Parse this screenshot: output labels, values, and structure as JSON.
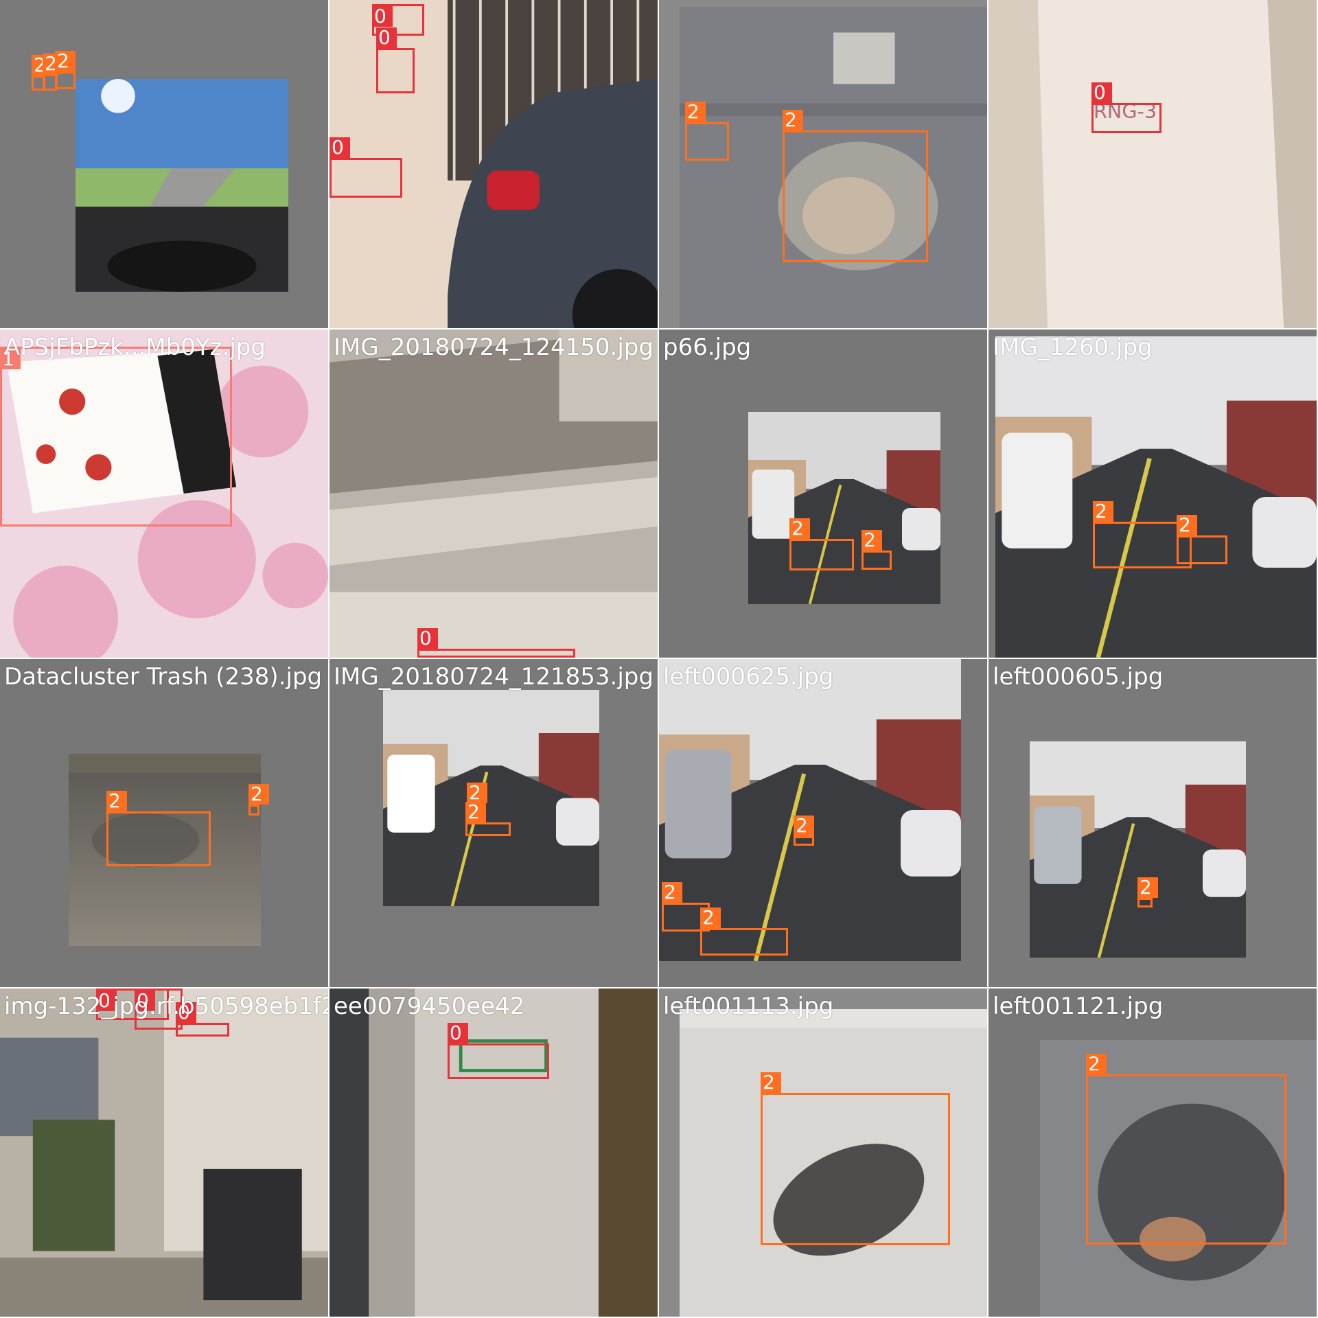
{
  "mosaic": {
    "label_colors": {
      "0": "#e8323a",
      "1": "#f77b6e",
      "2": "#ff6f1f"
    },
    "tiles": [
      {
        "filename": "",
        "bg": "#7a7a7a",
        "photo": {
          "kind": "dashcam",
          "tones": [
            "#4f86c9",
            "#8fb86a",
            "#2b2b2e"
          ]
        },
        "boxes": [
          {
            "label": "2"
          },
          {
            "label": "2"
          },
          {
            "label": "2"
          }
        ]
      },
      {
        "filename": "",
        "bg": "#e9ded4",
        "photo": {
          "kind": "wall-car",
          "tones": [
            "#e9d8c8",
            "#3e4450",
            "#c8222e"
          ]
        },
        "boxes": [
          {
            "label": "0"
          },
          {
            "label": "0"
          },
          {
            "label": "0"
          }
        ]
      },
      {
        "filename": "",
        "bg": "#8a8a8a",
        "photo": {
          "kind": "asphalt",
          "tones": [
            "#7d7f84",
            "#a6a39c",
            "#5c5e63"
          ]
        },
        "boxes": [
          {
            "label": "2"
          },
          {
            "label": "2"
          }
        ]
      },
      {
        "filename": "",
        "bg": "#e7dfd6",
        "photo": {
          "kind": "wall",
          "tones": [
            "#efe7de",
            "#d9cdbf",
            "#cbbfb2"
          ]
        },
        "boxes": [
          {
            "label": "0"
          }
        ]
      },
      {
        "filename": "APSjFbPzk...Mb0Yz.jpg",
        "bg": "#e8d2de",
        "photo": {
          "kind": "tablecloth",
          "tones": [
            "#f0d8e3",
            "#e79ab7",
            "#1f1f1f"
          ]
        },
        "boxes": [
          {
            "label": "1"
          }
        ]
      },
      {
        "filename": "IMG_20180724_124150.jpg",
        "bg": "#9c9790",
        "photo": {
          "kind": "balcony",
          "tones": [
            "#b9b3ab",
            "#8b857d",
            "#6c6760"
          ]
        },
        "boxes": [
          {
            "label": "0"
          }
        ]
      },
      {
        "filename": "p66.jpg",
        "bg": "#777777",
        "photo": {
          "kind": "street",
          "tones": [
            "#d8d8d8",
            "#3b3c3f",
            "#eaeaea"
          ]
        },
        "boxes": [
          {
            "label": "2"
          },
          {
            "label": "2"
          }
        ]
      },
      {
        "filename": "IMG_1260.jpg",
        "bg": "#7a7a7a",
        "photo": {
          "kind": "street",
          "tones": [
            "#e4e4e6",
            "#3a3b3e",
            "#f0f0f0"
          ]
        },
        "boxes": [
          {
            "label": "2"
          },
          {
            "label": "2"
          }
        ]
      },
      {
        "filename": "Datacluster Trash (238).jpg",
        "bg": "#777777",
        "photo": {
          "kind": "dirt",
          "tones": [
            "#5a5753",
            "#7a756c",
            "#8d877c"
          ]
        },
        "boxes": [
          {
            "label": "2"
          },
          {
            "label": "2"
          }
        ]
      },
      {
        "filename": "IMG_20180724_121853.jpg",
        "bg": "#7a7a7a",
        "photo": {
          "kind": "street",
          "tones": [
            "#dcdcdc",
            "#3a3b3e",
            "#ffffff"
          ]
        },
        "boxes": [
          {
            "label": "2"
          },
          {
            "label": "2"
          }
        ]
      },
      {
        "filename": "left000625.jpg",
        "bg": "#777777",
        "photo": {
          "kind": "street",
          "tones": [
            "#dfdfdf",
            "#3b3c3f",
            "#a8acb2"
          ]
        },
        "boxes": [
          {
            "label": "2"
          },
          {
            "label": "2"
          },
          {
            "label": "2"
          }
        ]
      },
      {
        "filename": "left000605.jpg",
        "bg": "#7a7a7a",
        "photo": {
          "kind": "street",
          "tones": [
            "#e0e0e0",
            "#3b3c3f",
            "#b5b9c0"
          ]
        },
        "boxes": [
          {
            "label": "2"
          }
        ]
      },
      {
        "filename": "img-132_jpg.rf.b50598eb1f2...",
        "bg": "#8c8c8c",
        "photo": {
          "kind": "alley",
          "tones": [
            "#b8b1a6",
            "#4c5a3a",
            "#2e2e30"
          ]
        },
        "boxes": [
          {
            "label": "0"
          },
          {
            "label": "0"
          },
          {
            "label": "0"
          }
        ]
      },
      {
        "filename": "ee0079450ee42",
        "bg": "#c9c6c2",
        "photo": {
          "kind": "pillar",
          "tones": [
            "#cfcac4",
            "#a7a29c",
            "#3c3e42"
          ]
        },
        "boxes": [
          {
            "label": "0"
          }
        ]
      },
      {
        "filename": "left001113.jpg",
        "bg": "#8a8a8a",
        "photo": {
          "kind": "crack",
          "tones": [
            "#d9d7d4",
            "#aaa7a2",
            "#2c2b29"
          ]
        },
        "boxes": [
          {
            "label": "2"
          }
        ]
      },
      {
        "filename": "left001121.jpg",
        "bg": "#777777",
        "photo": {
          "kind": "pothole",
          "tones": [
            "#86878b",
            "#4e4f52",
            "#b08261"
          ]
        },
        "boxes": [
          {
            "label": "2"
          }
        ]
      }
    ]
  }
}
